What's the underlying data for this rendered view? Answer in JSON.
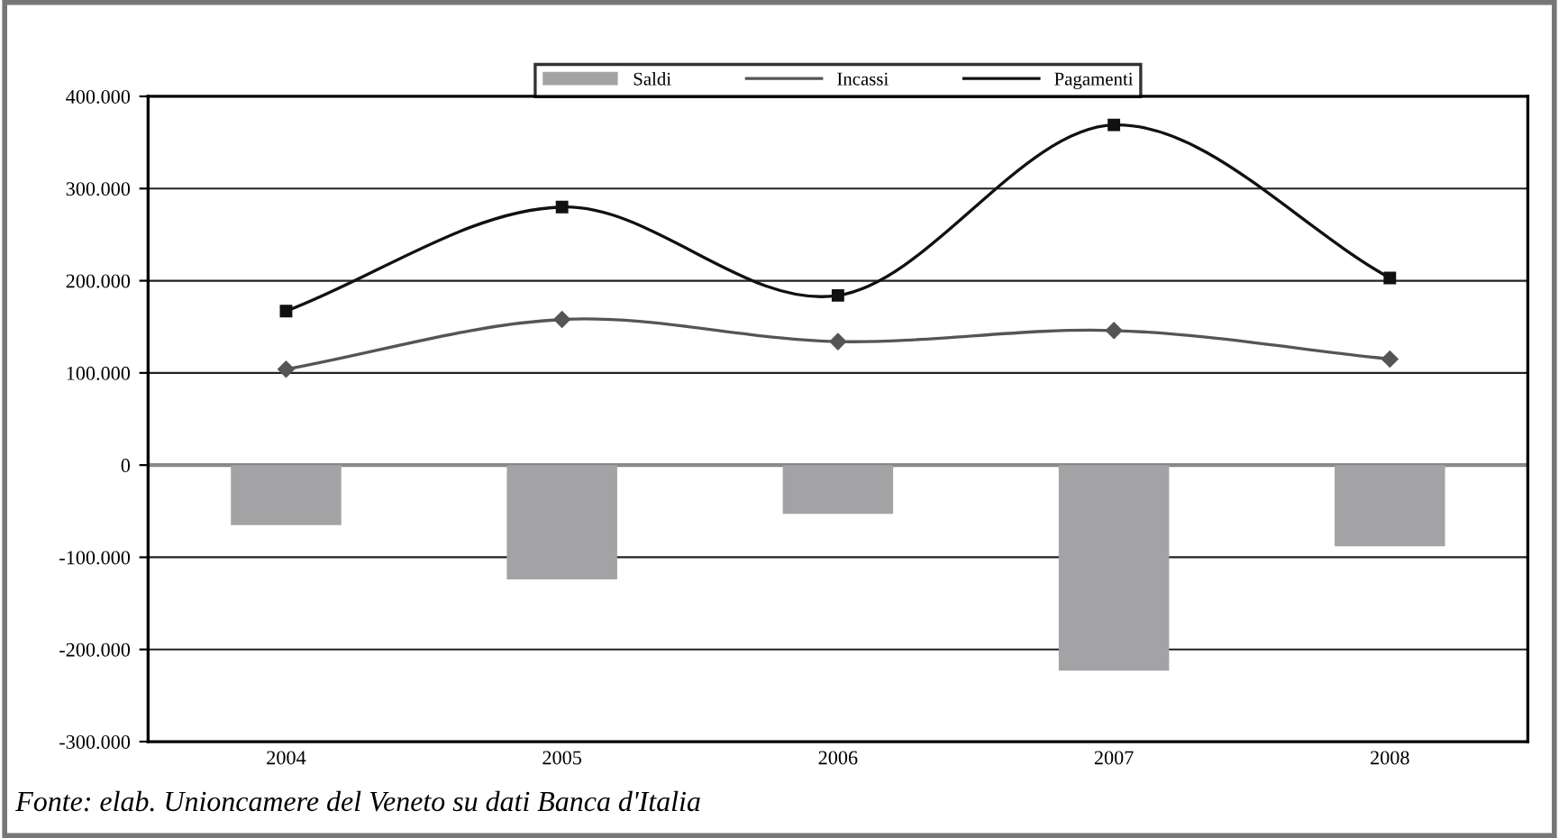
{
  "chart_data": {
    "type": "bar",
    "categories": [
      "2004",
      "2005",
      "2006",
      "2007",
      "2008"
    ],
    "series": [
      {
        "name": "Saldi",
        "color": "#a3a3a5",
        "values": [
          -65000,
          -124000,
          -53000,
          -223000,
          -88000
        ]
      },
      {
        "name": "Incassi",
        "type": "line",
        "color": "#555555",
        "marker": "diamond",
        "values": [
          104000,
          158000,
          134000,
          146000,
          115000
        ]
      },
      {
        "name": "Pagamenti",
        "type": "line",
        "color": "#111111",
        "marker": "square",
        "values": [
          167000,
          280000,
          184000,
          369000,
          203000
        ]
      }
    ],
    "ylim": [
      -300000,
      400000
    ],
    "yticks": [
      {
        "value": -300000,
        "label": "-300.000"
      },
      {
        "value": -200000,
        "label": "-200.000"
      },
      {
        "value": -100000,
        "label": "-100.000"
      },
      0,
      {
        "value": 100000,
        "label": "100.000"
      },
      {
        "value": 200000,
        "label": "200.000"
      },
      {
        "value": 300000,
        "label": "300.000"
      },
      {
        "value": 400000,
        "label": "400.000"
      }
    ],
    "grid": "y",
    "legend": "top",
    "annotations": [
      "Fonte: elab. Unioncamere del Veneto su dati Banca d'Italia"
    ]
  }
}
